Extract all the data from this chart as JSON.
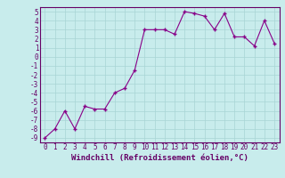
{
  "xlabel": "Windchill (Refroidissement éolien,°C)",
  "x": [
    0,
    1,
    2,
    3,
    4,
    5,
    6,
    7,
    8,
    9,
    10,
    11,
    12,
    13,
    14,
    15,
    16,
    17,
    18,
    19,
    20,
    21,
    22,
    23
  ],
  "y": [
    -9.0,
    -8.0,
    -6.0,
    -8.0,
    -5.5,
    -5.8,
    -5.8,
    -4.0,
    -3.5,
    -1.5,
    3.0,
    3.0,
    3.0,
    2.5,
    5.0,
    4.8,
    4.5,
    3.0,
    4.8,
    2.2,
    2.2,
    1.2,
    4.0,
    1.5
  ],
  "line_color": "#880088",
  "marker": "+",
  "bg_color": "#c8ecec",
  "grid_color": "#a8d4d4",
  "axis_color": "#660066",
  "spine_color": "#660066",
  "ylim": [
    -9.5,
    5.5
  ],
  "xlim": [
    -0.5,
    23.5
  ],
  "yticks": [
    5,
    4,
    3,
    2,
    1,
    0,
    -1,
    -2,
    -3,
    -4,
    -5,
    -6,
    -7,
    -8,
    -9
  ],
  "xticks": [
    0,
    1,
    2,
    3,
    4,
    5,
    6,
    7,
    8,
    9,
    10,
    11,
    12,
    13,
    14,
    15,
    16,
    17,
    18,
    19,
    20,
    21,
    22,
    23
  ],
  "tick_fontsize": 5.5,
  "xlabel_fontsize": 6.5,
  "xlabel_fontweight": "bold"
}
